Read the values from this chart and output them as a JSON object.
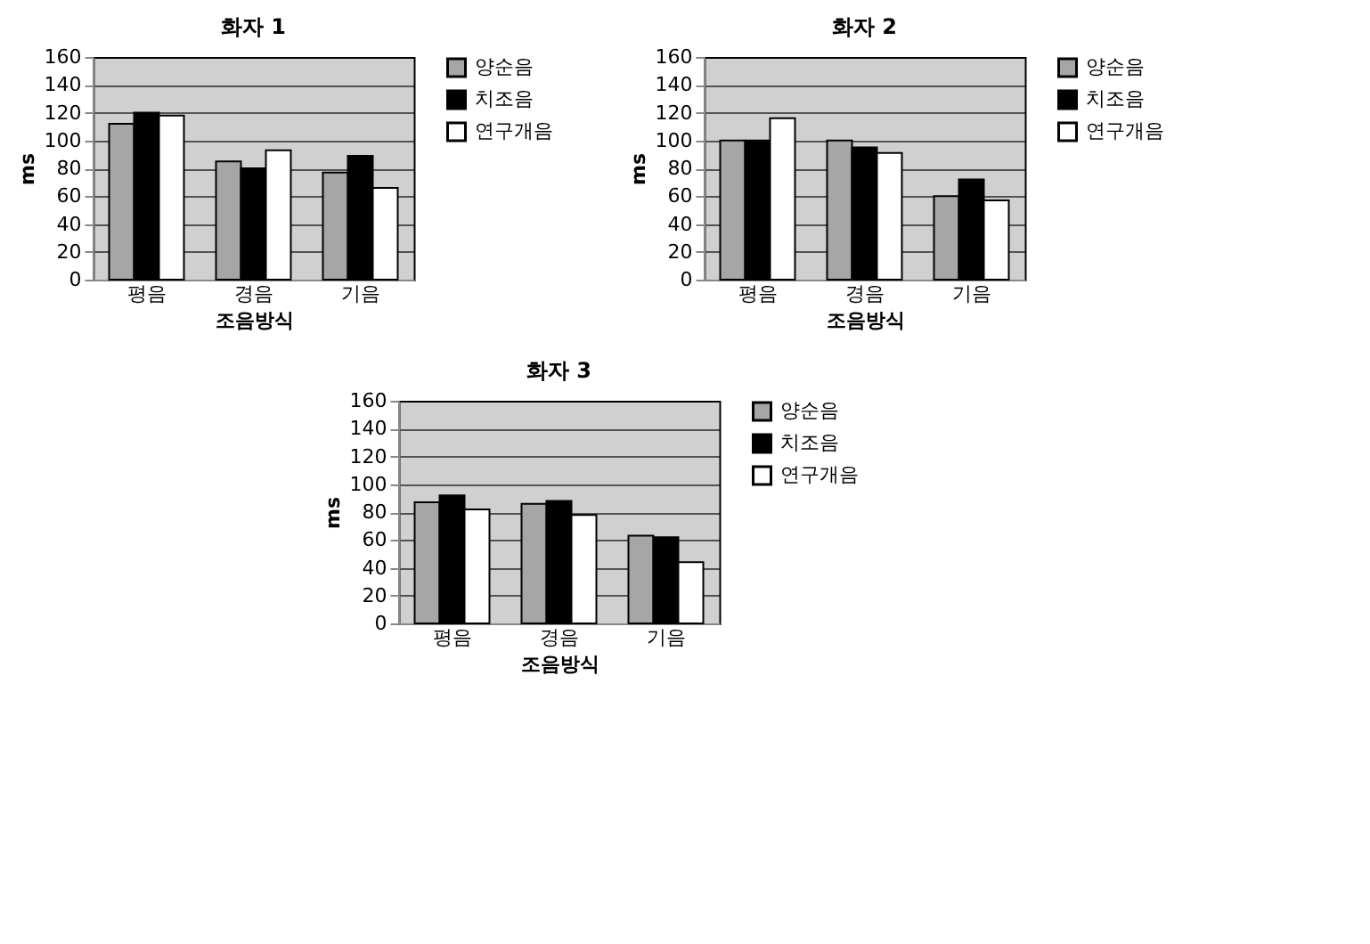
{
  "chart_data": [
    {
      "type": "bar",
      "title": "화자 1",
      "xlabel": "조음방식",
      "ylabel": "ms",
      "categories": [
        "평음",
        "경음",
        "기음"
      ],
      "series": [
        {
          "name": "양순음",
          "color": "#a6a6a6",
          "values": [
            112,
            85,
            77
          ]
        },
        {
          "name": "치조음",
          "color": "#000000",
          "values": [
            120,
            80,
            89
          ]
        },
        {
          "name": "연구개음",
          "color": "#ffffff",
          "values": [
            118,
            93,
            66
          ]
        }
      ],
      "ylim": [
        0,
        160
      ],
      "yticks": [
        0,
        20,
        40,
        60,
        80,
        100,
        120,
        140,
        160
      ],
      "grid": "y",
      "legend": "right"
    },
    {
      "type": "bar",
      "title": "화자 2",
      "xlabel": "조음방식",
      "ylabel": "ms",
      "categories": [
        "평음",
        "경음",
        "기음"
      ],
      "series": [
        {
          "name": "양순음",
          "color": "#a6a6a6",
          "values": [
            100,
            100,
            60
          ]
        },
        {
          "name": "치조음",
          "color": "#000000",
          "values": [
            100,
            95,
            72
          ]
        },
        {
          "name": "연구개음",
          "color": "#ffffff",
          "values": [
            116,
            91,
            57
          ]
        }
      ],
      "ylim": [
        0,
        160
      ],
      "yticks": [
        0,
        20,
        40,
        60,
        80,
        100,
        120,
        140,
        160
      ],
      "grid": "y",
      "legend": "right"
    },
    {
      "type": "bar",
      "title": "화자 3",
      "xlabel": "조음방식",
      "ylabel": "ms",
      "categories": [
        "평음",
        "경음",
        "기음"
      ],
      "series": [
        {
          "name": "양순음",
          "color": "#a6a6a6",
          "values": [
            87,
            86,
            63
          ]
        },
        {
          "name": "치조음",
          "color": "#000000",
          "values": [
            92,
            88,
            62
          ]
        },
        {
          "name": "연구개음",
          "color": "#ffffff",
          "values": [
            82,
            78,
            44
          ]
        }
      ],
      "ylim": [
        0,
        160
      ],
      "yticks": [
        0,
        20,
        40,
        60,
        80,
        100,
        120,
        140,
        160
      ],
      "grid": "y",
      "legend": "right"
    }
  ]
}
